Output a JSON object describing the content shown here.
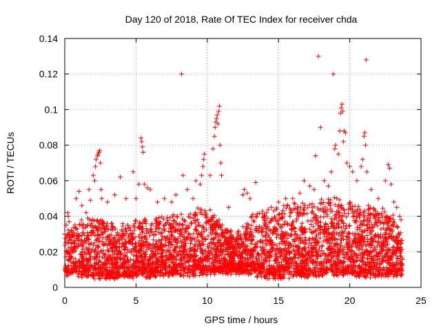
{
  "chart_data": {
    "type": "scatter",
    "title": "Day 120 of 2018, Rate Of TEC Index for receiver chda",
    "xlabel": "GPS time / hours",
    "ylabel": "ROTI / TECUs",
    "xlim": [
      0,
      25
    ],
    "ylim": [
      0,
      0.14
    ],
    "x_ticks": [
      0,
      5,
      10,
      15,
      20,
      25
    ],
    "x_tick_labels": [
      "0",
      "5",
      "10",
      "15",
      "20",
      "25"
    ],
    "y_ticks": [
      0,
      0.02,
      0.04,
      0.06,
      0.08,
      0.1,
      0.12,
      0.14
    ],
    "y_tick_labels": [
      "0",
      "0.02",
      "0.04",
      "0.06",
      "0.08",
      "0.1",
      "0.12",
      "0.14"
    ],
    "grid": true,
    "marker": "+",
    "color": "#ff0000",
    "series": [
      {
        "name": "ROTI",
        "points": [
          [
            0.1,
            0.035
          ],
          [
            0.2,
            0.042
          ],
          [
            0.25,
            0.04
          ],
          [
            0.3,
            0.037
          ],
          [
            0.45,
            0.032
          ],
          [
            0.8,
            0.05
          ],
          [
            1.0,
            0.054
          ],
          [
            1.2,
            0.046
          ],
          [
            1.5,
            0.042
          ],
          [
            1.7,
            0.055
          ],
          [
            1.8,
            0.049
          ],
          [
            2.0,
            0.063
          ],
          [
            2.1,
            0.06
          ],
          [
            2.15,
            0.068
          ],
          [
            2.2,
            0.072
          ],
          [
            2.3,
            0.074
          ],
          [
            2.35,
            0.075
          ],
          [
            2.4,
            0.076
          ],
          [
            2.45,
            0.077
          ],
          [
            2.5,
            0.07
          ],
          [
            2.55,
            0.055
          ],
          [
            2.6,
            0.05
          ],
          [
            3.0,
            0.048
          ],
          [
            3.5,
            0.052
          ],
          [
            3.9,
            0.062
          ],
          [
            4.3,
            0.05
          ],
          [
            4.8,
            0.065
          ],
          [
            5.0,
            0.05
          ],
          [
            5.2,
            0.058
          ],
          [
            5.35,
            0.084
          ],
          [
            5.4,
            0.082
          ],
          [
            5.45,
            0.079
          ],
          [
            5.5,
            0.076
          ],
          [
            5.6,
            0.058
          ],
          [
            5.8,
            0.056
          ],
          [
            6.0,
            0.055
          ],
          [
            6.5,
            0.048
          ],
          [
            7.0,
            0.05
          ],
          [
            7.5,
            0.048
          ],
          [
            7.8,
            0.052
          ],
          [
            8.2,
            0.12
          ],
          [
            8.3,
            0.063
          ],
          [
            8.6,
            0.055
          ],
          [
            9.0,
            0.05
          ],
          [
            9.2,
            0.06
          ],
          [
            9.5,
            0.058
          ],
          [
            9.6,
            0.063
          ],
          [
            9.7,
            0.068
          ],
          [
            9.75,
            0.072
          ],
          [
            9.8,
            0.075
          ],
          [
            10.2,
            0.063
          ],
          [
            10.4,
            0.078
          ],
          [
            10.5,
            0.085
          ],
          [
            10.55,
            0.09
          ],
          [
            10.6,
            0.093
          ],
          [
            10.65,
            0.095
          ],
          [
            10.7,
            0.097
          ],
          [
            10.75,
            0.092
          ],
          [
            10.8,
            0.099
          ],
          [
            10.85,
            0.102
          ],
          [
            10.9,
            0.08
          ],
          [
            10.95,
            0.07
          ],
          [
            11.0,
            0.063
          ],
          [
            11.5,
            0.045
          ],
          [
            12.5,
            0.052
          ],
          [
            12.6,
            0.055
          ],
          [
            12.8,
            0.053
          ],
          [
            13.0,
            0.05
          ],
          [
            13.4,
            0.059
          ],
          [
            14.0,
            0.04
          ],
          [
            14.5,
            0.045
          ],
          [
            15.0,
            0.048
          ],
          [
            15.5,
            0.05
          ],
          [
            16.0,
            0.05
          ],
          [
            16.5,
            0.053
          ],
          [
            16.8,
            0.06
          ],
          [
            17.2,
            0.057
          ],
          [
            17.5,
            0.055
          ],
          [
            17.6,
            0.074
          ],
          [
            17.8,
            0.13
          ],
          [
            17.95,
            0.09
          ],
          [
            18.2,
            0.06
          ],
          [
            18.5,
            0.057
          ],
          [
            18.7,
            0.065
          ],
          [
            18.85,
            0.12
          ],
          [
            18.95,
            0.078
          ],
          [
            19.0,
            0.08
          ],
          [
            19.2,
            0.075
          ],
          [
            19.3,
            0.088
          ],
          [
            19.35,
            0.098
          ],
          [
            19.4,
            0.101
          ],
          [
            19.45,
            0.103
          ],
          [
            19.5,
            0.099
          ],
          [
            19.55,
            0.082
          ],
          [
            19.6,
            0.088
          ],
          [
            19.7,
            0.087
          ],
          [
            19.8,
            0.07
          ],
          [
            20.0,
            0.068
          ],
          [
            20.2,
            0.065
          ],
          [
            20.5,
            0.06
          ],
          [
            20.8,
            0.068
          ],
          [
            20.9,
            0.072
          ],
          [
            21.0,
            0.085
          ],
          [
            21.05,
            0.087
          ],
          [
            21.1,
            0.08
          ],
          [
            21.15,
            0.128
          ],
          [
            21.2,
            0.065
          ],
          [
            21.5,
            0.055
          ],
          [
            22.0,
            0.05
          ],
          [
            22.5,
            0.06
          ],
          [
            22.7,
            0.069
          ],
          [
            22.8,
            0.067
          ],
          [
            22.9,
            0.058
          ],
          [
            23.1,
            0.048
          ],
          [
            23.3,
            0.045
          ],
          [
            23.5,
            0.04
          ],
          [
            23.6,
            0.038
          ]
        ],
        "band": {
          "description": "dense cloud of points spanning the full time range",
          "x_range": [
            0,
            23.7
          ],
          "lower_envelope": [
            [
              0,
              0.008
            ],
            [
              3,
              0.006
            ],
            [
              6,
              0.007
            ],
            [
              9,
              0.008
            ],
            [
              12,
              0.009
            ],
            [
              15,
              0.006
            ],
            [
              18,
              0.008
            ],
            [
              21,
              0.007
            ],
            [
              23.7,
              0.008
            ]
          ],
          "upper_envelope": [
            [
              0,
              0.032
            ],
            [
              2,
              0.04
            ],
            [
              4,
              0.035
            ],
            [
              6,
              0.038
            ],
            [
              8,
              0.04
            ],
            [
              10,
              0.045
            ],
            [
              12,
              0.028
            ],
            [
              13,
              0.04
            ],
            [
              15,
              0.045
            ],
            [
              17,
              0.047
            ],
            [
              19,
              0.05
            ],
            [
              21,
              0.045
            ],
            [
              23,
              0.042
            ],
            [
              23.7,
              0.03
            ]
          ]
        }
      }
    ]
  }
}
